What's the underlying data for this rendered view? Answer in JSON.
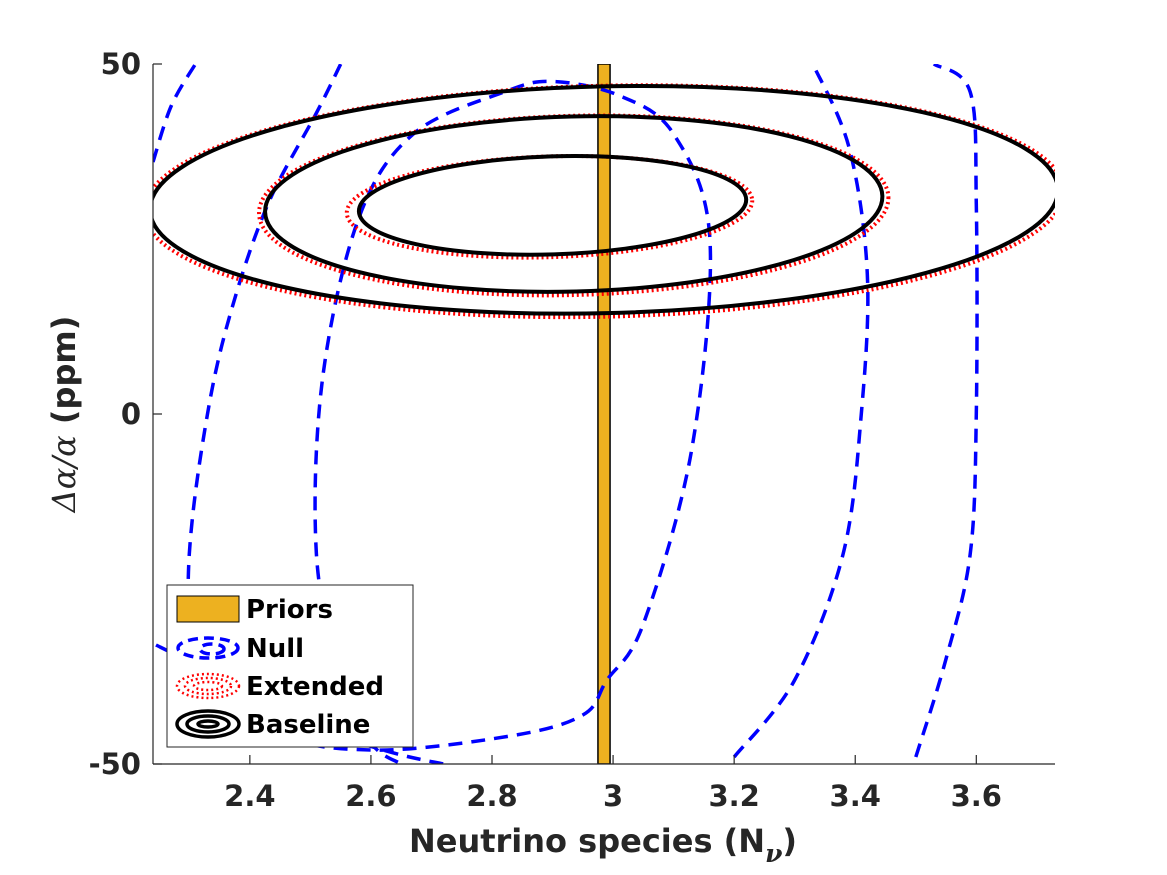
{
  "chart_data": {
    "type": "contour",
    "xlabel": "Neutrino species (N",
    "xlabel_subscript": "ν",
    "xlabel_close": ")",
    "ylabel_part1": "Δα/α",
    "ylabel_part2": " (ppm)",
    "xlim": [
      2.24,
      3.73
    ],
    "ylim": [
      -50,
      50
    ],
    "xticks": [
      2.4,
      2.6,
      2.8,
      3.0,
      3.2,
      3.4,
      3.6
    ],
    "xtick_labels": [
      "2.4",
      "2.6",
      "2.8",
      "3",
      "3.2",
      "3.4",
      "3.6"
    ],
    "yticks": [
      -50,
      0,
      50
    ],
    "ytick_labels": [
      "-50",
      "0",
      "50"
    ],
    "legend_position": "bottom-left",
    "series": [
      {
        "name": "Priors",
        "style": "bar",
        "color": "#edb120",
        "x_range": [
          2.975,
          2.995
        ],
        "y_range": [
          -50,
          50
        ]
      },
      {
        "name": "Null",
        "style": "dashed",
        "color": "#0000ff",
        "contours": [
          {
            "points": [
              [
                2.31,
                -32
              ],
              [
                2.44,
                -45
              ],
              [
                2.6,
                -48
              ],
              [
                2.83,
                -46
              ],
              [
                2.95,
                -43
              ],
              [
                2.99,
                -38
              ],
              [
                3.05,
                -30
              ],
              [
                3.13,
                -5
              ],
              [
                3.16,
                25
              ],
              [
                3.1,
                40
              ],
              [
                3.01,
                45.5
              ],
              [
                2.9,
                47.5
              ],
              [
                2.82,
                46
              ],
              [
                2.67,
                40
              ],
              [
                2.58,
                28
              ],
              [
                2.52,
                5
              ],
              [
                2.51,
                -20
              ],
              [
                2.55,
                -38
              ],
              [
                2.6,
                -47
              ],
              [
                2.65,
                -50
              ]
            ],
            "closed": false
          },
          {
            "points": [
              [
                2.245,
                -33
              ],
              [
                2.3,
                -35.5
              ],
              [
                2.45,
                -43
              ],
              [
                2.62,
                -48
              ],
              [
                2.72,
                -50
              ]
            ],
            "closed": false
          },
          {
            "points": [
              [
                2.3,
                -40
              ],
              [
                2.3,
                -20
              ],
              [
                2.33,
                0
              ],
              [
                2.37,
                15
              ],
              [
                2.43,
                30
              ],
              [
                2.51,
                43
              ],
              [
                2.55,
                50
              ]
            ],
            "closed": false
          },
          {
            "points": [
              [
                2.24,
                36
              ],
              [
                2.27,
                44
              ],
              [
                2.31,
                50
              ]
            ],
            "closed": false
          },
          {
            "points": [
              [
                3.2,
                -49
              ],
              [
                3.3,
                -38
              ],
              [
                3.38,
                -20
              ],
              [
                3.41,
                0
              ],
              [
                3.42,
                20
              ],
              [
                3.39,
                38
              ],
              [
                3.33,
                50
              ]
            ],
            "closed": false
          },
          {
            "points": [
              [
                3.5,
                -49
              ],
              [
                3.55,
                -35
              ],
              [
                3.59,
                -20
              ],
              [
                3.6,
                0
              ],
              [
                3.6,
                30
              ],
              [
                3.59,
                46
              ],
              [
                3.53,
                50
              ]
            ],
            "closed": false
          }
        ]
      },
      {
        "name": "Extended",
        "style": "dotted",
        "color": "#ff0000",
        "contours": [
          {
            "cx": 2.895,
            "cy": 29.6,
            "rx": 0.335,
            "ry": 7.2,
            "rotation": -1.8,
            "closed": true
          },
          {
            "cx": 2.935,
            "cy": 29.8,
            "rx": 0.52,
            "ry": 12.8,
            "rotation": -1.5,
            "closed": true
          },
          {
            "cx": 2.985,
            "cy": 30.4,
            "rx": 0.76,
            "ry": 16.5,
            "rotation": -1.3,
            "closed": true
          }
        ]
      },
      {
        "name": "Baseline",
        "style": "solid",
        "color": "#000000",
        "contours": [
          {
            "cx": 2.9,
            "cy": 29.8,
            "rx": 0.32,
            "ry": 7.0,
            "rotation": -1.8,
            "closed": true
          },
          {
            "cx": 2.935,
            "cy": 30.0,
            "rx": 0.51,
            "ry": 12.5,
            "rotation": -1.5,
            "closed": true
          },
          {
            "cx": 2.985,
            "cy": 30.6,
            "rx": 0.75,
            "ry": 16.2,
            "rotation": -1.3,
            "closed": true
          }
        ]
      }
    ]
  }
}
